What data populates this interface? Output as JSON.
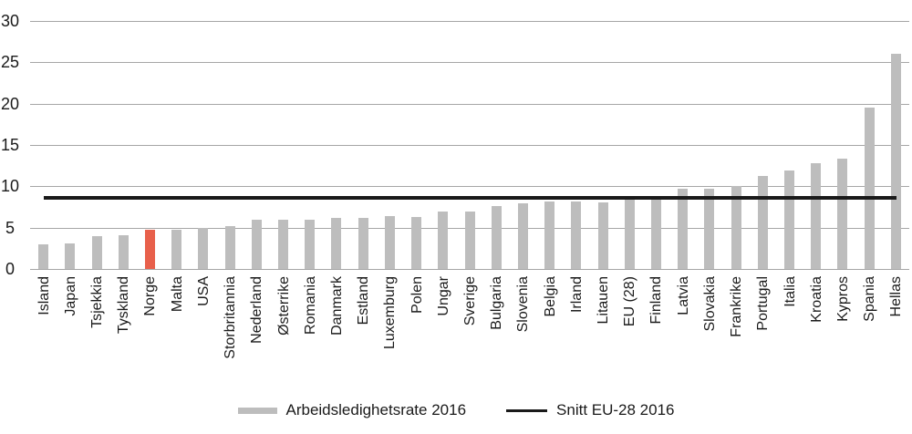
{
  "chart_data": {
    "type": "bar",
    "title": "",
    "xlabel": "",
    "ylabel": "",
    "categories": [
      "Island",
      "Japan",
      "Tsjekkia",
      "Tyskland",
      "Norge",
      "Malta",
      "USA",
      "Storbritannia",
      "Nederland",
      "Østerrike",
      "Romania",
      "Danmark",
      "Estland",
      "Luxemburg",
      "Polen",
      "Ungar",
      "Sverige",
      "Bulgaria",
      "Slovenia",
      "Belgia",
      "Irland",
      "Litauen",
      "EU (28)",
      "Finland",
      "Latvia",
      "Slovakia",
      "Frankrike",
      "Portugal",
      "Italia",
      "Kroatia",
      "Kypros",
      "Spania",
      "Hellas"
    ],
    "values": [
      3.0,
      3.1,
      4.0,
      4.1,
      4.7,
      4.7,
      5.0,
      5.2,
      6.0,
      6.0,
      6.0,
      6.2,
      6.2,
      6.4,
      6.3,
      6.9,
      6.9,
      7.6,
      7.9,
      8.2,
      8.2,
      8.1,
      8.6,
      8.8,
      9.7,
      9.7,
      10.0,
      11.2,
      11.9,
      12.8,
      13.3,
      19.5,
      26.0
    ],
    "bar_color": "#bdbdbd",
    "highlight_category": "Norge",
    "highlight_color": "#e8604b",
    "average_line": {
      "label": "Snitt EU-28 2016",
      "value": 8.6,
      "color": "#1a1a1a"
    },
    "ylim": [
      0,
      30
    ],
    "yticks": [
      0,
      5,
      10,
      15,
      20,
      25,
      30
    ],
    "grid": "horizontal",
    "gridline_color": "#a6a6a6",
    "legend_position": "bottom",
    "legend": [
      {
        "label": "Arbeidsledighetsrate 2016",
        "swatch": "bar"
      },
      {
        "label": "Snitt EU-28 2016",
        "swatch": "line"
      }
    ]
  }
}
